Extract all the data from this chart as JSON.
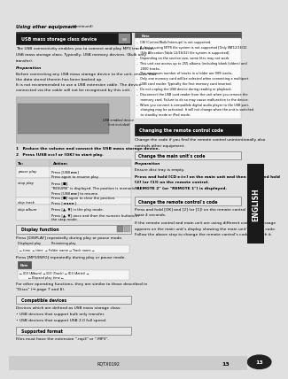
{
  "page_bg": "#e0e0e0",
  "content_bg": "#ffffff",
  "title_text": "Using other equipment",
  "title_suffix": "(continued)",
  "section1_header": "USB mass storage class device",
  "notes_header": "Note",
  "notes": [
    "–  CBl (Control/Bulk/Interrupt) is not supported.",
    "–  A device using NTFS file system is not supported [Only FAT12/16/32",
    "    (File Allocation Table 12/16/32) file system is supported].",
    "–  Depending on the section size, some files may not work.",
    "–  This unit can access up to 255 albums (including blank folders) and",
    "    2000 tracks.",
    "–  The maximum number of tracks in a folder are 999 tracks.",
    "–  Only one memory card will be selected when connecting a multiport",
    "    USB card reader. Typically the first memory card inserted.",
    "–  Do not unplug the USB device during reading or playback.",
    "–  Disconnect the USB card reader from the unit when you remove the",
    "    memory card. Failure to do so may cause malfunction to the device.",
    "–  When you connect a compatible digital audio player to the USB port,",
    "    charging may be activated. It will not change when the unit is switched",
    "    to standby mode or iPod mode."
  ],
  "remote_header": "Changing the remote control code",
  "remote_intro1": "Change the code if you find the remote control unintentionally also",
  "remote_intro2": "controls other equipment.",
  "main_unit_header": "Change the main unit's code",
  "main_unit_prep_body": "Ensure disc tray is empty.",
  "main_unit_lines": [
    "Press and hold [CD ►/▸▸] on the main unit and then press and hold",
    "[2] (or [1]) on the remote control.",
    "\"REMOTE 2\" (or \"REMOTE 1\") is displayed."
  ],
  "remote_code_header": "Change the remote control's code",
  "remote_code_line1": "Press and hold [OK] and [2] (or [1]) on the remote control for at",
  "remote_code_line2": "least 4 seconds.",
  "remote_code_footer": [
    "If the remote control and main unit are using different codes, a message",
    "appears on the main unit's display showing the main unit's current code.",
    "Follow the above step to change the remote control's code to match it."
  ],
  "english_tab": "ENGLISH",
  "page_number": "13",
  "catalog_number": "RQTX0192",
  "header_bg": "#1a1a1a",
  "header_fg": "#ffffff",
  "sub_box_bg": "#e8e8e8",
  "sub_box_border": "#777777",
  "note_tag_bg": "#555555",
  "note_tag_fg": "#ffffff",
  "english_bg": "#1a1a1a",
  "english_fg": "#ffffff",
  "bottom_bg": "#cccccc",
  "circle_bg": "#222222",
  "circle_fg": "#ffffff"
}
